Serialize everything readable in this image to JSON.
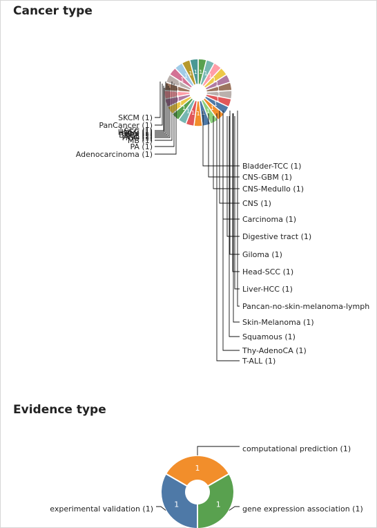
{
  "chart_data": [
    {
      "type": "pie",
      "title": "Cancer type",
      "donut": true,
      "slices": [
        {
          "label": "SKCM",
          "value": 1,
          "color": "#59a14f"
        },
        {
          "label": "PanCancer",
          "value": 1,
          "color": "#76b7b2"
        },
        {
          "label": "LSCC",
          "value": 1,
          "color": "#ff9da7"
        },
        {
          "label": "HNSC",
          "value": 1,
          "color": "#edc948"
        },
        {
          "label": "GBM",
          "value": 1,
          "color": "#b07aa1"
        },
        {
          "label": "BRCA",
          "value": 1,
          "color": "#9c755f"
        },
        {
          "label": "AML",
          "value": 1,
          "color": "#bab0ac"
        },
        {
          "label": "HGG",
          "value": 1,
          "color": "#e15759"
        },
        {
          "label": "MB",
          "value": 1,
          "color": "#4e79a7"
        },
        {
          "label": "PA",
          "value": 1,
          "color": "#f28e2b"
        },
        {
          "label": "Adenocarcinoma",
          "value": 1,
          "color": "#8cd17d"
        },
        {
          "label": "Bladder-TCC",
          "value": 1,
          "color": "#4e79a7"
        },
        {
          "label": "CNS-GBM",
          "value": 1,
          "color": "#f28e2b"
        },
        {
          "label": "CNS-Medullo",
          "value": 1,
          "color": "#e15759"
        },
        {
          "label": "CNS",
          "value": 1,
          "color": "#76b7b2"
        },
        {
          "label": "Carcinoma",
          "value": 1,
          "color": "#59a14f"
        },
        {
          "label": "Digestive tract",
          "value": 1,
          "color": "#edc948"
        },
        {
          "label": "Giloma",
          "value": 1,
          "color": "#b07aa1"
        },
        {
          "label": "Head-SCC",
          "value": 1,
          "color": "#ff9da7"
        },
        {
          "label": "Liver-HCC",
          "value": 1,
          "color": "#9c755f"
        },
        {
          "label": "Pancan-no-skin-melanoma-lymph",
          "value": 1,
          "color": "#bab0ac"
        },
        {
          "label": "Skin-Melanoma",
          "value": 1,
          "color": "#d37295"
        },
        {
          "label": "Squamous",
          "value": 1,
          "color": "#a0cbe8"
        },
        {
          "label": "Thy-AdenoCA",
          "value": 1,
          "color": "#b6992d"
        },
        {
          "label": "T-ALL",
          "value": 1,
          "color": "#499894"
        }
      ],
      "labels_left": [
        "SKCM (1)",
        "PanCancer (1)",
        "LSCC (1)",
        "HNSC (1)",
        "GBM (1)",
        "BRCA (1)",
        "AML (1)",
        "HGG (1)",
        "MB (1)",
        "PA (1)",
        "Adenocarcinoma (1)"
      ],
      "labels_right": [
        "Bladder-TCC (1)",
        "CNS-GBM (1)",
        "CNS-Medullo (1)",
        "CNS (1)",
        "Carcinoma (1)",
        "Digestive tract (1)",
        "Giloma (1)",
        "Head-SCC (1)",
        "Liver-HCC (1)",
        "Pancan-no-skin-melanoma-lymph",
        "Skin-Melanoma (1)",
        "Squamous (1)",
        "Thy-AdenoCA (1)",
        "T-ALL (1)"
      ]
    },
    {
      "type": "pie",
      "title": "Evidence type",
      "donut": true,
      "slices": [
        {
          "label": "computational prediction (1)",
          "value": 1,
          "color": "#f28e2b"
        },
        {
          "label": "gene expression association (1)",
          "value": 1,
          "color": "#59a14f"
        },
        {
          "label": "experimental validation (1)",
          "value": 1,
          "color": "#4e79a7"
        }
      ]
    }
  ]
}
